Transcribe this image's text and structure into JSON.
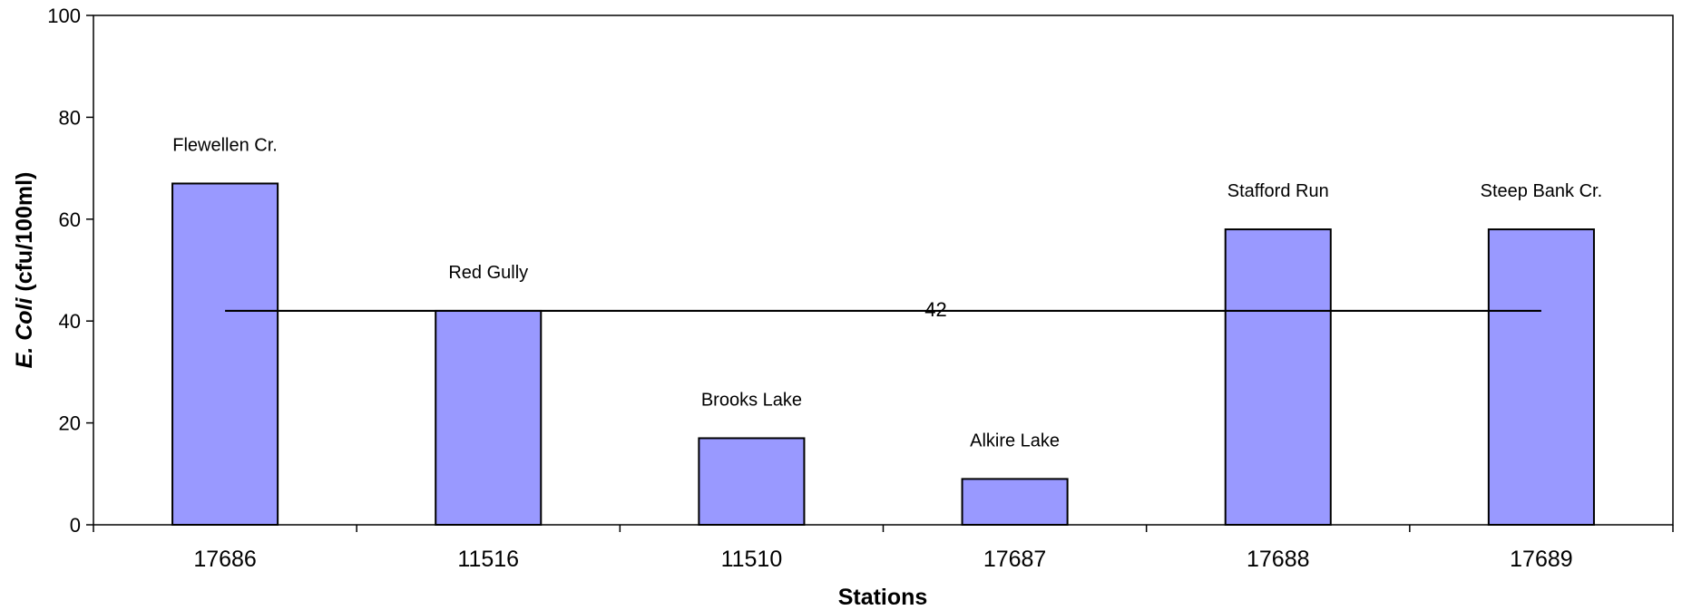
{
  "chart_data": {
    "type": "bar",
    "categories": [
      "17686",
      "11516",
      "11510",
      "17687",
      "17688",
      "17689"
    ],
    "bar_labels": [
      "Flewellen Cr.",
      "Red Gully",
      "Brooks Lake",
      "Alkire Lake",
      "Stafford Run",
      "Steep Bank Cr."
    ],
    "values": [
      67,
      42,
      17,
      9,
      58,
      58
    ],
    "reference_line": {
      "value": 42,
      "label": "42"
    },
    "xlabel": "Stations",
    "ylabel_prefix": "E. Coli",
    "ylabel_suffix": " (cfu/100ml)",
    "ylim": [
      0,
      100
    ],
    "yticks": [
      "0",
      "20",
      "40",
      "60",
      "80",
      "100"
    ],
    "bar_color": "#9999ff",
    "bar_stroke": "#000000",
    "grid": false,
    "legend": "none"
  }
}
